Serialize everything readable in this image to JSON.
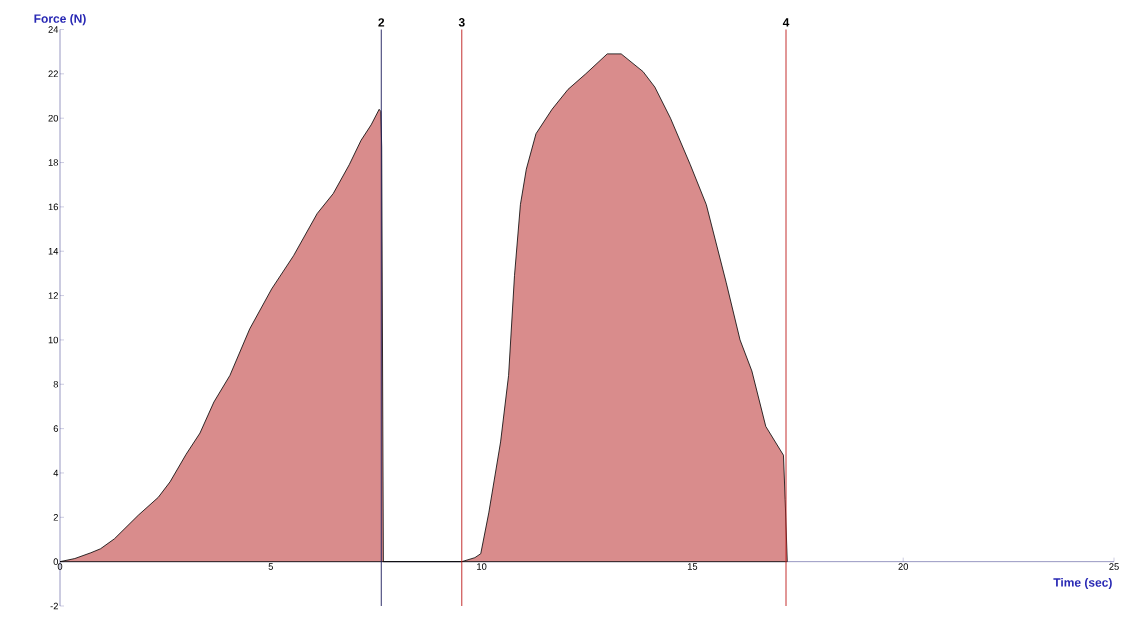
{
  "chart_data": {
    "type": "area",
    "xlabel": "Time (sec)",
    "ylabel": "Force (N)",
    "xlim": [
      0,
      25
    ],
    "ylim": [
      -2,
      24
    ],
    "xticks": [
      0,
      5,
      10,
      15,
      20,
      25
    ],
    "yticks": [
      -2,
      0,
      2,
      4,
      6,
      8,
      10,
      12,
      14,
      16,
      18,
      20,
      22,
      24
    ],
    "series": [
      {
        "color": "#d98c8c",
        "x": [
          0,
          0.35,
          0.73,
          0.96,
          1.29,
          1.86,
          2.33,
          2.61,
          2.99,
          3.32,
          3.65,
          4.03,
          4.5,
          5.02,
          5.54,
          6.1,
          6.48,
          6.86,
          7.14,
          7.38,
          7.57,
          7.61,
          7.63,
          7.67,
          9.53,
          9.84,
          9.98,
          10.17,
          10.45,
          10.64,
          10.78,
          10.92,
          11.06,
          11.29,
          11.67,
          12.05,
          12.47,
          12.98,
          13.31,
          13.83,
          14.11,
          14.48,
          14.95,
          15.33,
          15.8,
          16.13,
          16.41,
          16.74,
          17.16,
          17.2,
          17.25
        ],
        "values": [
          0,
          0.14,
          0.4,
          0.58,
          1.03,
          2.1,
          2.9,
          3.6,
          4.84,
          5.8,
          7.2,
          8.4,
          10.5,
          12.3,
          13.8,
          15.7,
          16.6,
          17.9,
          19.0,
          19.7,
          20.4,
          20.3,
          18.7,
          0,
          0,
          0.18,
          0.36,
          2.2,
          5.4,
          8.4,
          12.9,
          16.1,
          17.7,
          19.3,
          20.4,
          21.3,
          22.0,
          22.9,
          22.9,
          22.1,
          21.4,
          20.0,
          17.9,
          16.1,
          12.6,
          10.0,
          8.6,
          6.1,
          4.8,
          2.8,
          0
        ]
      }
    ],
    "ref_lines": [
      {
        "axis": "x",
        "value": 7.62,
        "color": "#202060"
      },
      {
        "axis": "x",
        "value": 9.53,
        "color": "#c02020"
      },
      {
        "axis": "x",
        "value": 17.22,
        "color": "#c02020"
      }
    ],
    "annotations": [
      {
        "text": "2",
        "x": 7.62,
        "y": 24
      },
      {
        "text": "3",
        "x": 9.53,
        "y": 24
      },
      {
        "text": "4",
        "x": 17.22,
        "y": 24
      }
    ]
  }
}
